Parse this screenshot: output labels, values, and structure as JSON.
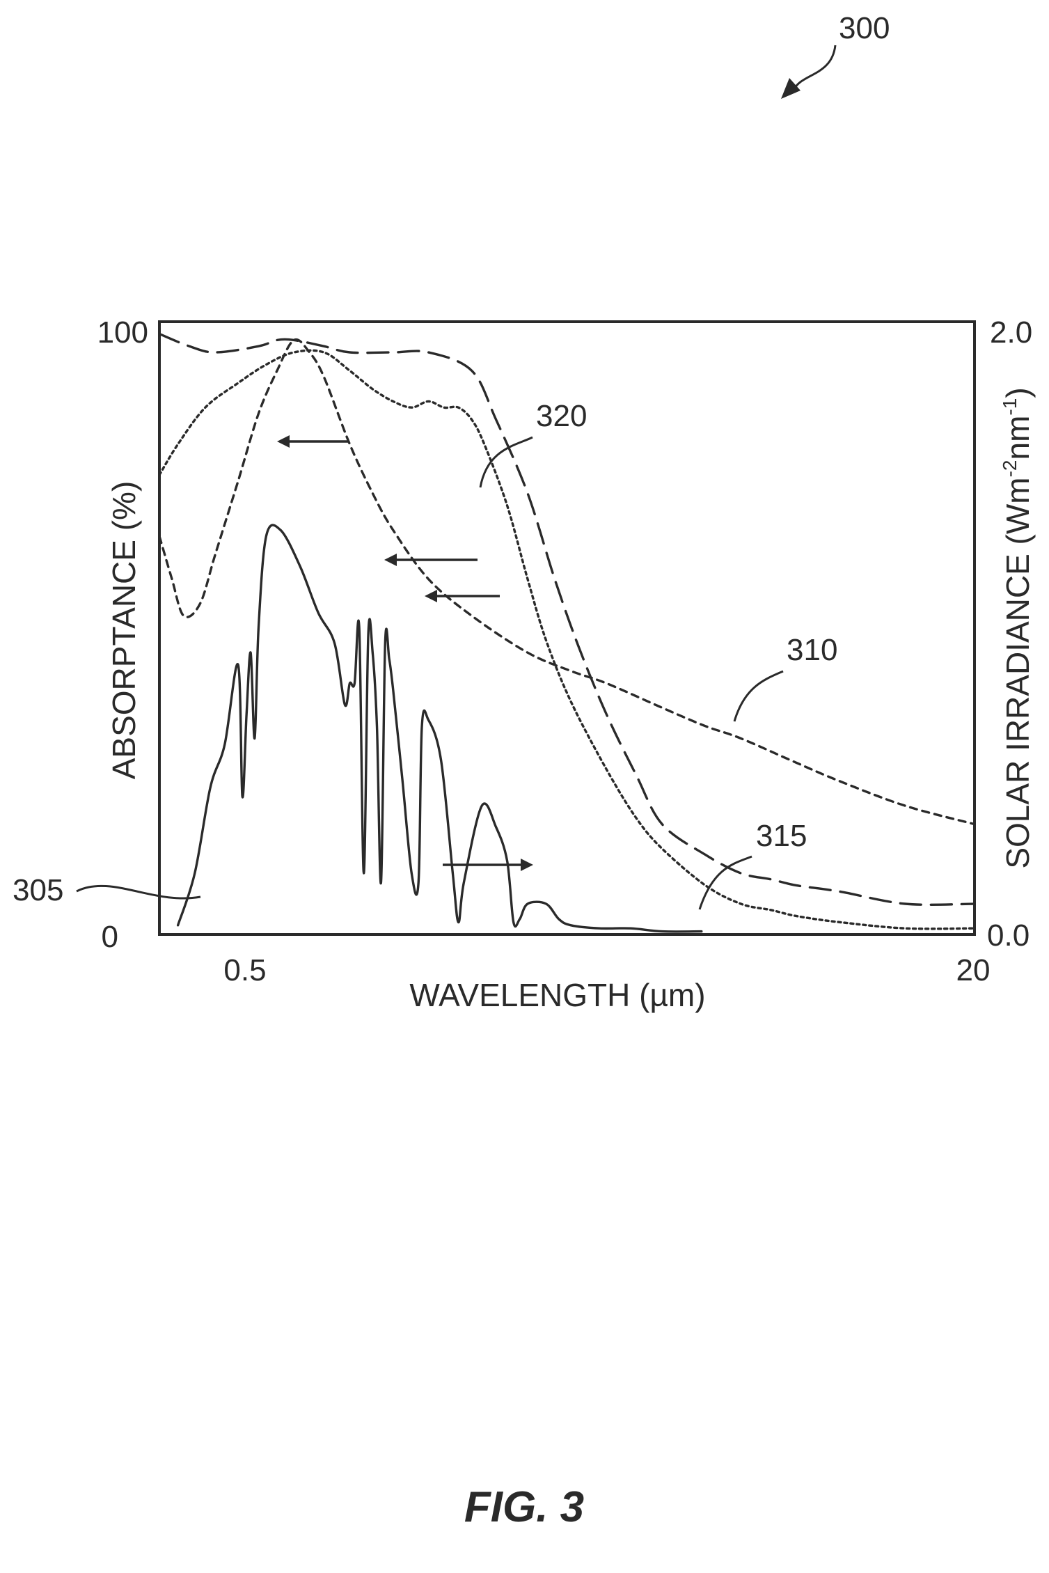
{
  "figure_ref": "300",
  "caption": "FIG. 3",
  "chart_data": {
    "type": "line",
    "xlabel": "WAVELENGTH (µm)",
    "x_tick_labels": [
      "0.5",
      "20"
    ],
    "y_left_label": "ABSORPTANCE (%)",
    "y_left_tick_labels": [
      "100",
      "0"
    ],
    "y_left_range": [
      0,
      100
    ],
    "y_right_label_parts": [
      "SOLAR IRRADIANCE (Wm",
      "-2",
      "nm",
      "-1",
      ")"
    ],
    "y_right_tick_labels": [
      "2.0",
      "0.0"
    ],
    "y_right_range": [
      0.0,
      2.0
    ],
    "x_range": [
      0.3,
      20
    ],
    "x_scale": "log",
    "grid": false,
    "series": [
      {
        "name": "305",
        "axis": "right",
        "x": [
          0.33,
          0.36,
          0.39,
          0.42,
          0.45,
          0.46,
          0.47,
          0.48,
          0.49,
          0.5,
          0.52,
          0.56,
          0.62,
          0.68,
          0.74,
          0.78,
          0.8,
          0.82,
          0.84,
          0.86,
          0.88,
          0.9,
          0.92,
          0.94,
          0.96,
          0.98,
          1.0,
          1.05,
          1.1,
          1.14,
          1.16,
          1.2,
          1.28,
          1.36,
          1.4,
          1.44,
          1.58,
          1.7,
          1.8,
          1.86,
          1.92,
          2.0,
          2.2,
          2.35,
          2.5,
          2.9,
          3.4,
          4.0,
          4.9
        ],
        "y": [
          0.03,
          0.2,
          0.48,
          0.62,
          0.88,
          0.45,
          0.72,
          0.92,
          0.64,
          1.0,
          1.3,
          1.32,
          1.2,
          1.05,
          0.95,
          0.75,
          0.82,
          0.82,
          1.0,
          0.2,
          0.98,
          0.92,
          0.68,
          0.17,
          0.95,
          0.9,
          0.8,
          0.5,
          0.2,
          0.17,
          0.68,
          0.7,
          0.57,
          0.2,
          0.04,
          0.17,
          0.42,
          0.35,
          0.24,
          0.04,
          0.05,
          0.1,
          0.1,
          0.05,
          0.03,
          0.02,
          0.02,
          0.01,
          0.01
        ]
      },
      {
        "name": "310",
        "axis": "left",
        "x": [
          0.3,
          0.32,
          0.34,
          0.37,
          0.4,
          0.45,
          0.5,
          0.55,
          0.6,
          0.65,
          0.7,
          0.8,
          0.9,
          1.0,
          1.2,
          1.5,
          2.0,
          2.5,
          3.0,
          4.0,
          5.0,
          6.0,
          8.0,
          10.0,
          14.0,
          20.0
        ],
        "y": [
          65,
          58,
          52,
          54,
          62,
          74,
          85,
          92,
          97,
          95,
          91,
          80,
          72,
          66,
          58,
          52,
          46,
          43,
          41,
          37,
          34,
          32,
          28,
          25,
          21,
          18
        ]
      },
      {
        "name": "315",
        "axis": "left",
        "x": [
          0.3,
          0.33,
          0.38,
          0.45,
          0.52,
          0.6,
          0.7,
          0.8,
          0.9,
          1.0,
          1.1,
          1.2,
          1.3,
          1.4,
          1.5,
          1.6,
          1.8,
          2.0,
          2.2,
          2.5,
          3.0,
          3.5,
          4.0,
          5.0,
          6.0,
          7.0,
          8.0,
          10.0,
          14.0,
          20.0
        ],
        "y": [
          75,
          80,
          86,
          90,
          93,
          95,
          95,
          92,
          89,
          87,
          86,
          87,
          86,
          86,
          84,
          80,
          70,
          58,
          48,
          38,
          27,
          19,
          14,
          8,
          5,
          4,
          3,
          2,
          1,
          1
        ]
      },
      {
        "name": "320",
        "axis": "left",
        "x": [
          0.3,
          0.35,
          0.4,
          0.5,
          0.55,
          0.6,
          0.7,
          0.8,
          1.0,
          1.2,
          1.5,
          1.7,
          2.0,
          2.3,
          2.6,
          3.0,
          3.5,
          4.0,
          5.0,
          6.0,
          7.0,
          8.0,
          10.0,
          14.0,
          20.0
        ],
        "y": [
          98,
          96,
          95,
          96,
          97,
          97,
          96,
          95,
          95,
          95,
          92,
          84,
          72,
          58,
          47,
          36,
          26,
          18,
          13,
          10,
          9,
          8,
          7,
          5,
          5
        ]
      }
    ]
  },
  "reference_labels": [
    "300",
    "305",
    "310",
    "315",
    "320"
  ]
}
